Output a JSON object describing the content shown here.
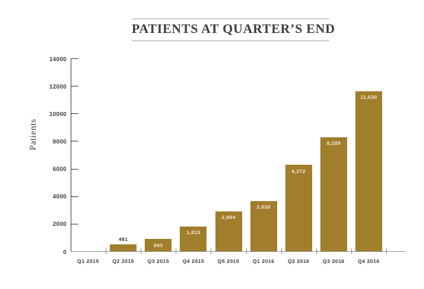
{
  "chart_data": {
    "type": "bar",
    "title": "PATIENTS AT QUARTER’S END",
    "xlabel": "",
    "ylabel": "Patients",
    "categories": [
      "Q1 2015",
      "Q2 2015",
      "Q3 2015",
      "Q4 2015",
      "Q5 2015",
      "Q1 2016",
      "Q2 2016",
      "Q3 2016",
      "Q4 2016"
    ],
    "values": [
      0,
      481,
      893,
      1813,
      2894,
      3638,
      6272,
      8289,
      11630
    ],
    "value_labels": [
      "",
      "481",
      "893",
      "1,813",
      "2,894",
      "3,638",
      "6,272",
      "8,289",
      "11,630"
    ],
    "ylim": [
      0,
      14000
    ],
    "yticks": [
      0,
      2000,
      4000,
      6000,
      8000,
      10000,
      12000,
      14000
    ],
    "ytick_labels": [
      "0",
      "2000",
      "4000",
      "6000",
      "8000",
      "10000",
      "12000",
      "14000"
    ],
    "grid": "off",
    "legend": "none",
    "colors": {
      "bar": "#a17e2b",
      "value_label_inside": "#f0e8d2",
      "value_label_outside": "#3a3a3a",
      "axis": "#4a4a4a",
      "baseline": "#9b9b9b",
      "tick": "#8f8f8f",
      "text": "#3a3a3a",
      "title_rule": "#a8a8a8"
    }
  }
}
